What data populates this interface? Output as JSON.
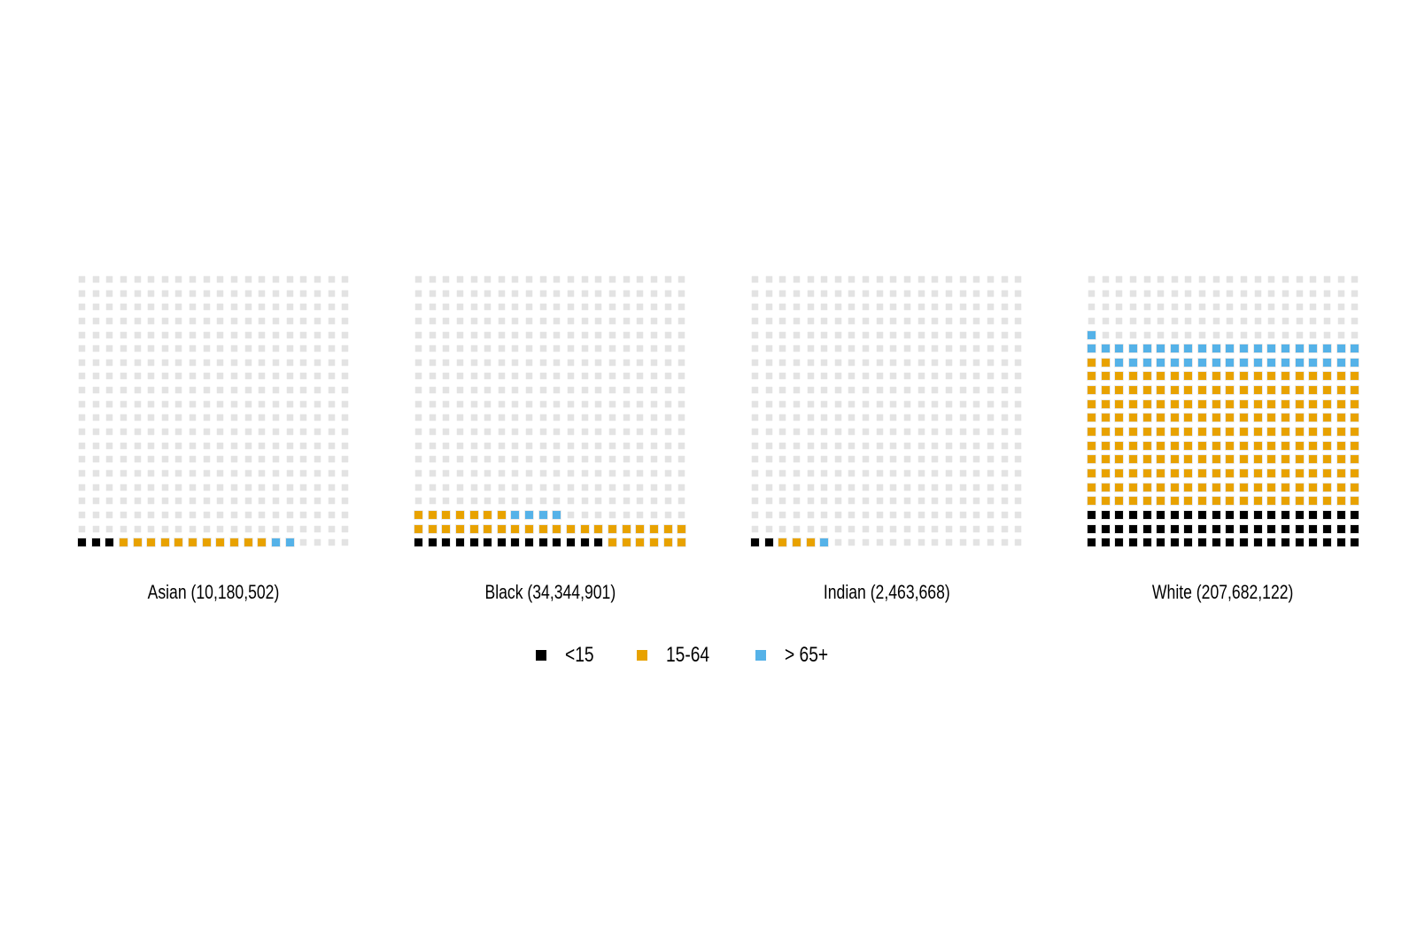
{
  "chart_data": {
    "type": "waffle",
    "grid": {
      "rows": 20,
      "cols": 20,
      "fill_origin": "bottom-left"
    },
    "empty_color": "#E3E3E3",
    "categories": [
      {
        "key": "under15",
        "label": "<15",
        "color": "#000000"
      },
      {
        "key": "age15to64",
        "label": "15-64",
        "color": "#E8A200"
      },
      {
        "key": "age65plus",
        "label": "> 65+",
        "color": "#55B2E8"
      }
    ],
    "panels": [
      {
        "group": "Asian",
        "population": "10,180,502",
        "caption": "Asian (10,180,502)",
        "squares": [
          3,
          11,
          2
        ]
      },
      {
        "group": "Black",
        "population": "34,344,901",
        "caption": "Black (34,344,901)",
        "squares": [
          14,
          33,
          4
        ]
      },
      {
        "group": "Indian",
        "population": "2,463,668",
        "caption": "Indian (2,463,668)",
        "squares": [
          2,
          3,
          1
        ]
      },
      {
        "group": "White",
        "population": "207,682,122",
        "caption": "White (207,682,122)",
        "squares": [
          60,
          202,
          39
        ]
      }
    ]
  }
}
